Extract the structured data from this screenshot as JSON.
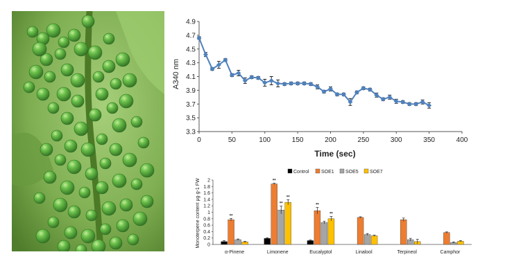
{
  "photo": {
    "subject": "green-berry-cluster-photo",
    "colors": {
      "background": "#7fae52",
      "stem": "#5c8a2e",
      "berry": "#53a93a",
      "berry_highlight": "#a9dc7f",
      "berry_shadow": "#2f6e22"
    }
  },
  "chart_data": [
    {
      "type": "line",
      "title": "",
      "xlabel": "Time (sec)",
      "ylabel": "A340 nm",
      "xlim": [
        0,
        400
      ],
      "ylim": [
        3.3,
        4.9
      ],
      "x_ticks": [
        "0",
        "50",
        "100",
        "150",
        "200",
        "250",
        "300",
        "350",
        "400"
      ],
      "y_ticks": [
        "3.3",
        "3.5",
        "3.7",
        "3.9",
        "4.1",
        "4.3",
        "4.5",
        "4.7",
        "4.9"
      ],
      "grid": false,
      "color": "#4f81bd",
      "series": [
        {
          "x": [
            0,
            10,
            20,
            30,
            40,
            50,
            60,
            70,
            80,
            90,
            100,
            110,
            120,
            130,
            140,
            150,
            160,
            170,
            180,
            190,
            200,
            210,
            220,
            230,
            240,
            250,
            260,
            270,
            280,
            290,
            300,
            310,
            320,
            330,
            340,
            350
          ],
          "y": [
            4.66,
            4.42,
            4.21,
            4.27,
            4.34,
            4.12,
            4.15,
            4.04,
            4.09,
            4.08,
            4.01,
            4.04,
            4.0,
            3.99,
            4.0,
            4.0,
            4.0,
            3.99,
            3.95,
            3.88,
            3.92,
            3.84,
            3.84,
            3.73,
            3.87,
            3.93,
            3.91,
            3.83,
            3.77,
            3.8,
            3.74,
            3.73,
            3.7,
            3.7,
            3.73,
            3.68
          ],
          "error": [
            0.02,
            0.03,
            0.02,
            0.05,
            0.02,
            0.02,
            0.04,
            0.04,
            0.02,
            0.02,
            0.05,
            0.06,
            0.05,
            0.02,
            0.02,
            0.02,
            0.02,
            0.02,
            0.03,
            0.02,
            0.03,
            0.02,
            0.02,
            0.05,
            0.02,
            0.02,
            0.02,
            0.03,
            0.02,
            0.03,
            0.03,
            0.02,
            0.02,
            0.02,
            0.03,
            0.04
          ]
        }
      ]
    },
    {
      "type": "bar",
      "title": "",
      "xlabel": "",
      "ylabel": "Monoterpene content μg·g-1 FW",
      "ylim": [
        0,
        2
      ],
      "y_ticks": [
        "0",
        "0.2",
        "0.4",
        "0.6",
        "0.8",
        "1",
        "1.2",
        "1.4",
        "1.6",
        "1.8",
        "2"
      ],
      "legend_position": "top",
      "grid": false,
      "categories": [
        "α-Pinene",
        "Limonene",
        "Eucalyptol",
        "Linalool",
        "Terpineol",
        "Camphor"
      ],
      "series": [
        {
          "name": "Control",
          "color": "#000000",
          "values": [
            0.09,
            0.19,
            0.12,
            0,
            0,
            0
          ],
          "error": [
            0.03,
            0.02,
            0.02,
            0,
            0,
            0
          ],
          "marks": [
            "",
            "",
            "",
            "",
            "",
            ""
          ]
        },
        {
          "name": "SOE1",
          "color": "#ed7d31",
          "values": [
            0.77,
            1.88,
            1.05,
            0.84,
            0.77,
            0.37
          ],
          "error": [
            0.04,
            0.02,
            0.1,
            0.02,
            0.05,
            0.02
          ],
          "marks": [
            "**",
            "**",
            "**",
            "",
            "",
            ""
          ]
        },
        {
          "name": "SOE5",
          "color": "#a5a5a5",
          "values": [
            0.15,
            1.07,
            0.68,
            0.31,
            0.15,
            0.06
          ],
          "error": [
            0.02,
            0.12,
            0.04,
            0.03,
            0.04,
            0.02
          ],
          "marks": [
            "",
            "**",
            "",
            "",
            "",
            ""
          ]
        },
        {
          "name": "SOE7",
          "color": "#ffc000",
          "values": [
            0.08,
            1.31,
            0.8,
            0.27,
            0.09,
            0.1
          ],
          "error": [
            0.02,
            0.08,
            0.07,
            0.02,
            0.07,
            0.02
          ],
          "marks": [
            "",
            "**",
            "**",
            "",
            "",
            ""
          ]
        }
      ]
    }
  ]
}
